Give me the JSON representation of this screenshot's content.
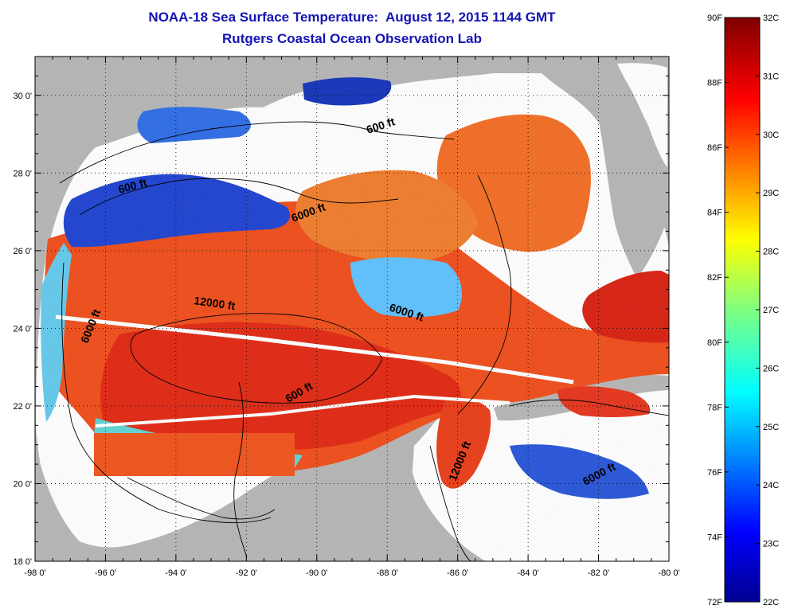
{
  "title": {
    "line1": "NOAA-18 Sea Surface Temperature:  August 12, 2015 1144 GMT",
    "line2": "Rutgers Coastal Ocean Observation Lab"
  },
  "map": {
    "lon_range": [
      -98,
      -80
    ],
    "lat_range": [
      18,
      31
    ],
    "lon_labels": [
      "-98 0'",
      "-96 0'",
      "-94 0'",
      "-92 0'",
      "-90 0'",
      "-88 0'",
      "-86 0'",
      "-84 0'",
      "-82 0'",
      "-80 0'"
    ],
    "lat_labels": [
      "18 0'",
      "20 0'",
      "22 0'",
      "24 0'",
      "26 0'",
      "28 0'",
      "30 0'"
    ],
    "contour_labels": [
      "600 ft",
      "600 ft",
      "6000 ft",
      "12000 ft",
      "6000 ft",
      "6000 ft",
      "600 ft",
      "12000 ft",
      "6000 ft"
    ],
    "colors": {
      "land": "#b4b4b4",
      "cloud_no_data": "#ffffff",
      "warm_sst": "#ee4010",
      "cool_sst": "#1a3fd0"
    }
  },
  "colorbar": {
    "fahrenheit_labels": [
      "90F",
      "88F",
      "86F",
      "84F",
      "82F",
      "80F",
      "78F",
      "76F",
      "74F",
      "72F"
    ],
    "celsius_labels": [
      "32C",
      "31C",
      "30C",
      "29C",
      "28C",
      "27C",
      "26C",
      "25C",
      "24C",
      "23C",
      "22C"
    ],
    "range_f": [
      72,
      90
    ],
    "range_c": [
      22,
      32
    ],
    "colormap": "jet"
  }
}
